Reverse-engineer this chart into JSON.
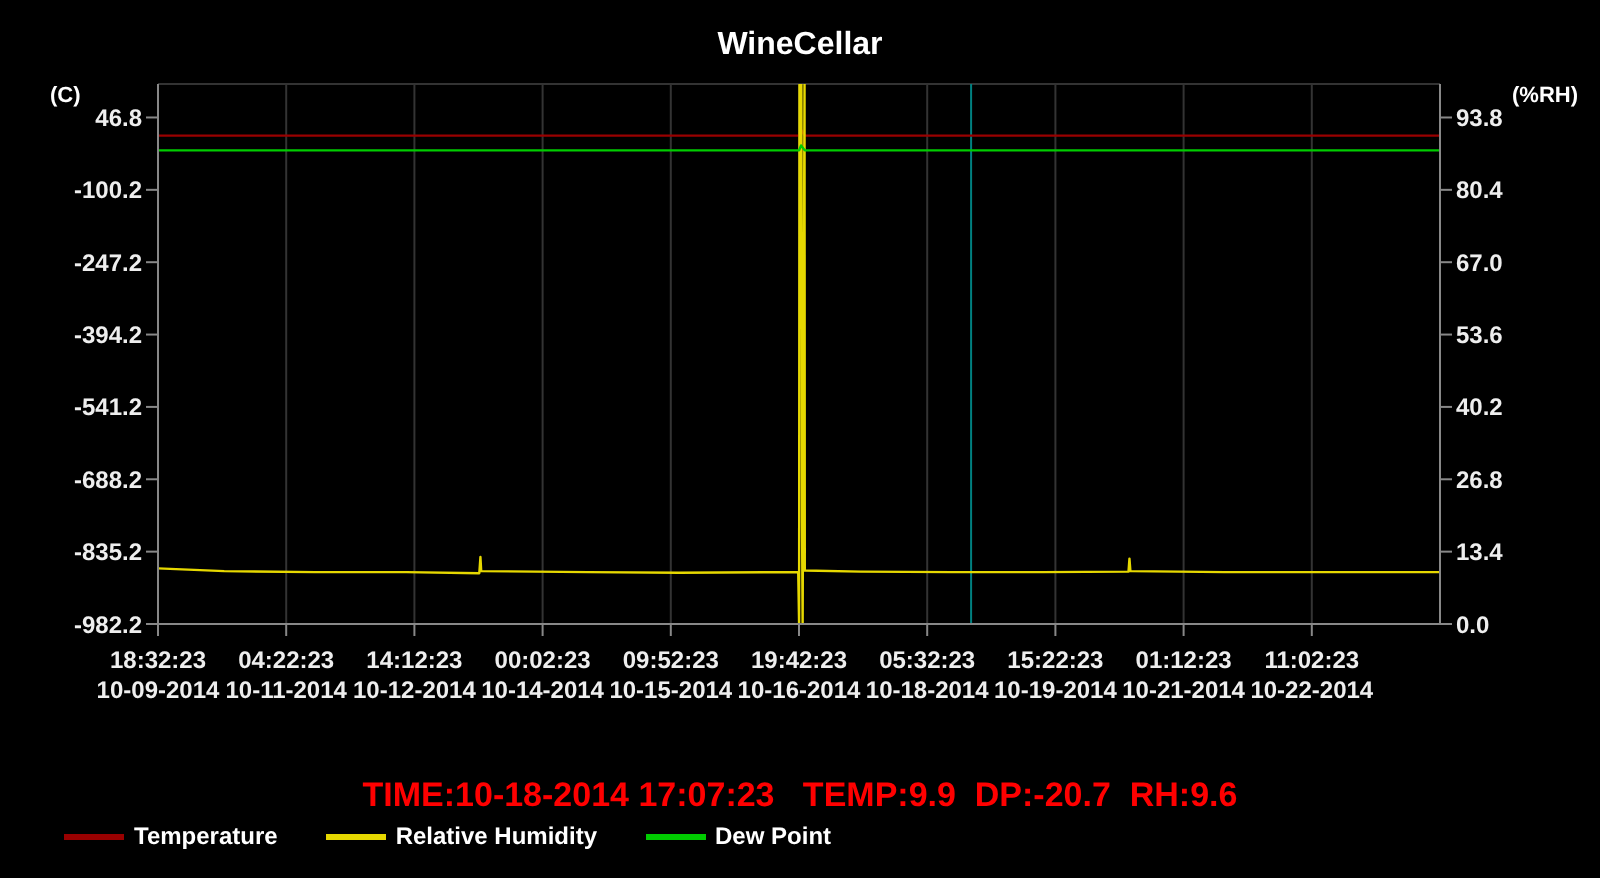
{
  "chart_data": {
    "type": "line",
    "title": "WineCellar",
    "ylabel": "(C)",
    "y2label": "(%RH)",
    "xlim": [
      "2014-10-09T18:32:23",
      "2014-10-23T20:52:23"
    ],
    "xticks": [
      {
        "value": "2014-10-09T18:32:23",
        "label": "18:32:23 10-09-2014"
      },
      {
        "value": "2014-10-11T04:22:23",
        "label": "04:22:23 10-11-2014"
      },
      {
        "value": "2014-10-12T14:12:23",
        "label": "14:12:23 10-12-2014"
      },
      {
        "value": "2014-10-14T00:02:23",
        "label": "00:02:23 10-14-2014"
      },
      {
        "value": "2014-10-15T09:52:23",
        "label": "09:52:23 10-15-2014"
      },
      {
        "value": "2014-10-16T19:42:23",
        "label": "19:42:23 10-16-2014"
      },
      {
        "value": "2014-10-18T05:32:23",
        "label": "05:32:23 10-18-2014"
      },
      {
        "value": "2014-10-19T15:22:23",
        "label": "15:22:23 10-19-2014"
      },
      {
        "value": "2014-10-21T01:12:23",
        "label": "01:12:23 10-21-2014"
      },
      {
        "value": "2014-10-22T11:02:23",
        "label": "11:02:23 10-22-2014"
      }
    ],
    "ylim": [
      -982.2,
      114.8
    ],
    "yticks": [
      -982.2,
      -835.2,
      -688.2,
      -541.2,
      -394.2,
      -247.2,
      -100.2,
      46.8
    ],
    "y2lim": [
      0,
      100
    ],
    "y2ticks": [
      {
        "value": 0,
        "label": "0.0"
      },
      13.4,
      26.8,
      40.2,
      53.6,
      {
        "value": 67,
        "label": "67.0"
      },
      80.4,
      93.8
    ],
    "series": [
      {
        "name": "Temperature",
        "color": "#990000",
        "x": [
          "2014-10-09T18:32:23",
          "2014-10-12T12:00:00",
          "2014-10-16T19:44:00",
          "2014-10-16T20:15:00",
          "2014-10-16T21:14:00",
          "2014-10-20T10:55:00",
          "2014-10-23T20:52:23"
        ],
        "values": [
          10,
          10,
          10,
          22,
          10,
          10,
          10
        ]
      },
      {
        "name": "Relative Humidity",
        "color": "#e6d800",
        "axis": "y2",
        "x": [
          "2014-10-09T18:32:23",
          "2014-10-10T12:00:00",
          "2014-10-11T12:00:00",
          "2014-10-12T12:00:00",
          "2014-10-13T07:20:00",
          "2014-10-13T07:38:00",
          "2014-10-13T07:50:00",
          "2014-10-14T12:00:00",
          "2014-10-15T12:00:00",
          "2014-10-16T19:30:00",
          "2014-10-16T19:44:00",
          "2014-10-16T19:50:00",
          "2014-10-16T20:20:00",
          "2014-10-16T20:30:00",
          "2014-10-16T20:40:00",
          "2014-10-16T21:10:00",
          "2014-10-16T21:14:00",
          "2014-10-17T12:00:00",
          "2014-10-18T12:00:00",
          "2014-10-19T12:00:00",
          "2014-10-20T10:40:00",
          "2014-10-20T10:55:00",
          "2014-10-20T11:10:00",
          "2014-10-21T12:00:00",
          "2014-10-22T12:00:00",
          "2014-10-23T20:52:23"
        ],
        "values": [
          10.3,
          9.8,
          9.6,
          9.6,
          9.4,
          12.4,
          9.8,
          9.6,
          9.5,
          9.6,
          0.0,
          100,
          100,
          19.2,
          0.0,
          100,
          9.9,
          9.7,
          9.6,
          9.6,
          9.7,
          12.1,
          9.8,
          9.6,
          9.6,
          9.6
        ]
      },
      {
        "name": "Dew Point",
        "color": "#00cc00",
        "x": [
          "2014-10-09T18:32:23",
          "2014-10-12T12:00:00",
          "2014-10-16T19:44:00",
          "2014-10-16T20:15:00",
          "2014-10-16T21:14:00",
          "2014-10-20T10:55:00",
          "2014-10-23T20:52:23"
        ],
        "values": [
          -20,
          -20,
          -20,
          -10,
          -20,
          -20,
          -20
        ]
      }
    ],
    "ref_lines": [
      {
        "axis": "x",
        "value": "2014-10-18T17:07:23",
        "color": "#008080"
      }
    ],
    "annotations": [
      "TIME:10-18-2014 17:07:23   TEMP:9.9  DP:-20.7  RH:9.6"
    ],
    "grid": true,
    "legend": "bottom",
    "marker": "none",
    "line_style": "solid"
  }
}
